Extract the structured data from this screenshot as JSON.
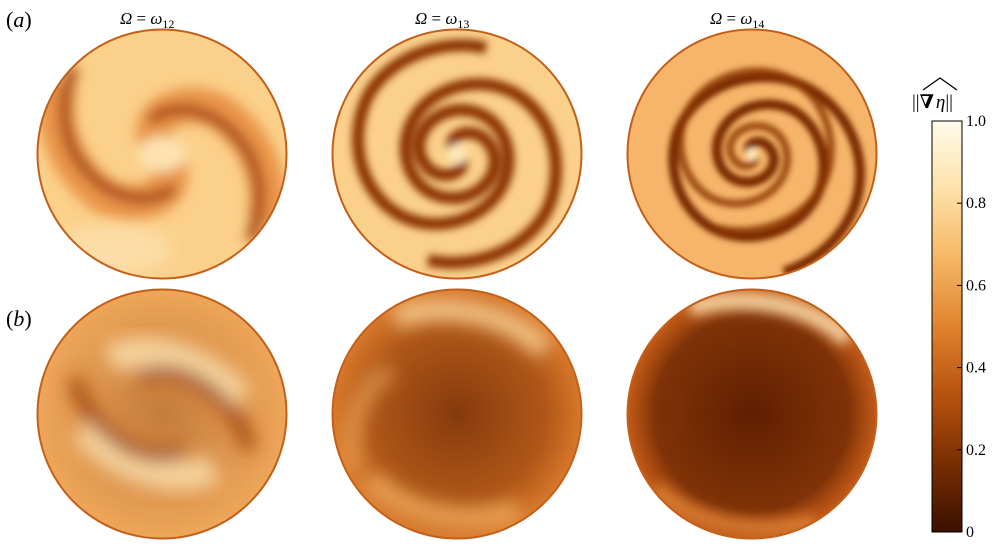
{
  "panels": [
    {
      "label_open": "(",
      "label_letter": "a",
      "label_close": ")"
    },
    {
      "label_open": "(",
      "label_letter": "b",
      "label_close": ")"
    }
  ],
  "columns": [
    {
      "omega": "Ω",
      "eq": " = ",
      "symbol": "ω",
      "sub": "12"
    },
    {
      "omega": "Ω",
      "eq": " = ",
      "symbol": "ω",
      "sub": "13"
    },
    {
      "omega": "Ω",
      "eq": " = ",
      "symbol": "ω",
      "sub": "14"
    }
  ],
  "colorbar": {
    "title_open": "||",
    "title_nabla": "∇",
    "title_eta": "η",
    "title_close": "||",
    "ticks": [
      {
        "value": 1.0,
        "label": "1.0"
      },
      {
        "value": 0.8,
        "label": "0.8"
      },
      {
        "value": 0.6,
        "label": "0.6"
      },
      {
        "value": 0.4,
        "label": "0.4"
      },
      {
        "value": 0.2,
        "label": "0.2"
      },
      {
        "value": 0,
        "label": "0"
      }
    ],
    "colors": [
      "#3a1000",
      "#7a2e02",
      "#b95410",
      "#e0832e",
      "#f6b866",
      "#fde3ac",
      "#fffaea"
    ]
  }
}
